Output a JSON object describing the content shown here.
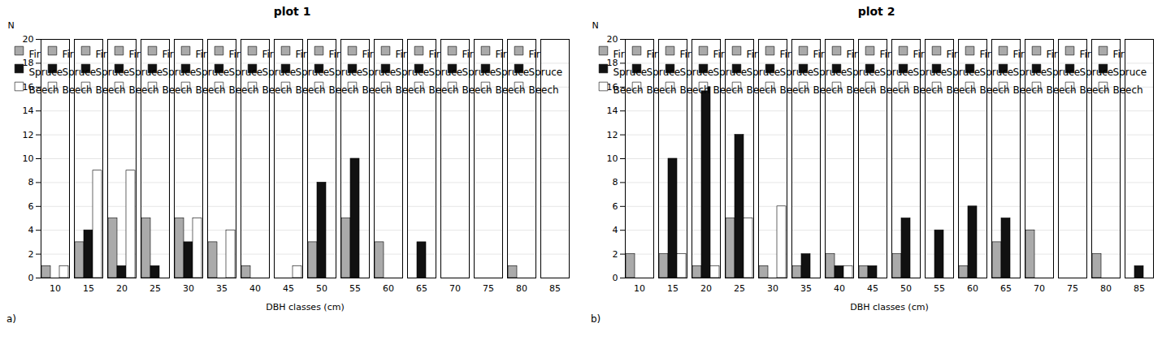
{
  "chart_data": [
    {
      "type": "bar",
      "title": "plot 1",
      "categories": [
        10,
        15,
        20,
        25,
        30,
        35,
        40,
        45,
        50,
        55,
        60,
        65,
        70,
        75,
        80,
        85
      ],
      "series": [
        {
          "name": "Fir",
          "color": "#aaaaaa",
          "values": [
            1,
            3,
            5,
            5,
            5,
            3,
            1,
            0,
            3,
            5,
            3,
            0,
            0,
            0,
            1,
            0
          ]
        },
        {
          "name": "Spruce",
          "color": "#111111",
          "values": [
            0,
            4,
            1,
            1,
            3,
            0,
            0,
            0,
            8,
            10,
            0,
            3,
            0,
            0,
            0,
            0
          ]
        },
        {
          "name": "Beech",
          "color": "#ffffff",
          "values": [
            1,
            9,
            9,
            0,
            5,
            4,
            0,
            1,
            0,
            0,
            0,
            0,
            0,
            0,
            0,
            0
          ]
        }
      ],
      "xlabel": "DBH classes (cm)",
      "ylabel": "N",
      "ylim": [
        0,
        20
      ],
      "yticks": [
        0,
        2,
        4,
        6,
        8,
        10,
        12,
        14,
        16,
        18,
        20
      ],
      "grid": true,
      "legend": "upper right",
      "annotations": [
        "a)"
      ]
    },
    {
      "type": "bar",
      "title": "plot 2",
      "categories": [
        10,
        15,
        20,
        25,
        30,
        35,
        40,
        45,
        50,
        55,
        60,
        65,
        70,
        75,
        80,
        85
      ],
      "series": [
        {
          "name": "Fir",
          "color": "#aaaaaa",
          "values": [
            2,
            2,
            1,
            5,
            1,
            1,
            2,
            1,
            2,
            0,
            1,
            3,
            4,
            0,
            2,
            0
          ]
        },
        {
          "name": "Spruce",
          "color": "#111111",
          "values": [
            0,
            10,
            16,
            12,
            0,
            2,
            1,
            1,
            5,
            4,
            6,
            5,
            0,
            0,
            0,
            1
          ]
        },
        {
          "name": "Beech",
          "color": "#ffffff",
          "values": [
            0,
            2,
            1,
            5,
            6,
            0,
            1,
            0,
            0,
            0,
            0,
            0,
            0,
            0,
            0,
            0
          ]
        }
      ],
      "xlabel": "DBH classes (cm)",
      "ylabel": "N",
      "ylim": [
        0,
        20
      ],
      "yticks": [
        0,
        2,
        4,
        6,
        8,
        10,
        12,
        14,
        16,
        18,
        20
      ],
      "grid": true,
      "legend": "upper right",
      "annotations": [
        "b)"
      ]
    }
  ]
}
